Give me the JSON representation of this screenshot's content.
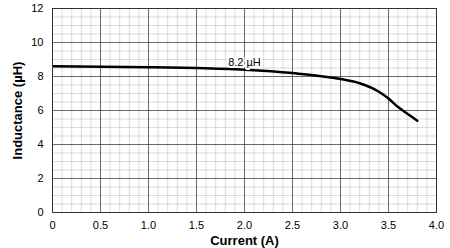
{
  "chart_data": {
    "type": "line",
    "x_label": "Current (A)",
    "y_label": "Inductance (µH)",
    "x": [
      0,
      0.5,
      1.0,
      1.5,
      2.0,
      2.5,
      3.0,
      3.2,
      3.4,
      3.5,
      3.6,
      3.7,
      3.8
    ],
    "series": [
      {
        "name": null,
        "color": "#000000",
        "values": [
          8.6,
          8.58,
          8.55,
          8.5,
          8.4,
          8.2,
          7.85,
          7.6,
          7.1,
          6.7,
          6.2,
          5.8,
          5.4
        ]
      }
    ],
    "xlim": [
      0,
      4
    ],
    "ylim": [
      0,
      12
    ],
    "xticks": [
      0,
      0.5,
      {
        "value": 1,
        "label": "1.0"
      },
      1.5,
      {
        "value": 2,
        "label": "2.0"
      },
      2.5,
      {
        "value": 3,
        "label": "3.0"
      },
      3.5,
      {
        "value": 4,
        "label": "4.0"
      }
    ],
    "yticks": [
      0,
      2,
      4,
      6,
      8,
      10,
      12
    ],
    "annotations": [
      {
        "text": "8.2 µH",
        "x": 2.0,
        "y": 8.85
      }
    ],
    "grid": true
  }
}
